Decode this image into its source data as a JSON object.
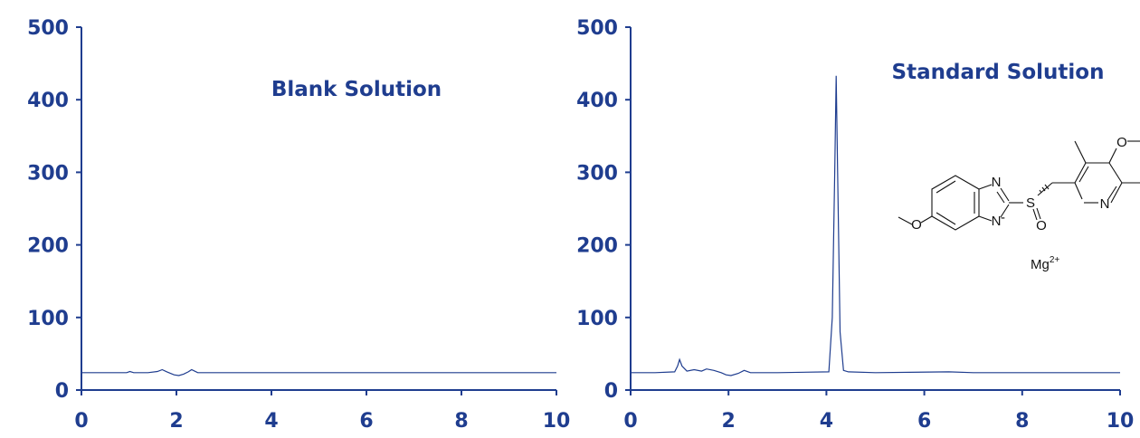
{
  "chart_data": [
    {
      "type": "line",
      "title": "Blank Solution",
      "xlim": [
        0,
        10
      ],
      "ylim": [
        0,
        500
      ],
      "x_ticks": [
        0,
        2,
        4,
        6,
        8,
        10
      ],
      "y_ticks": [
        0,
        100,
        200,
        300,
        400,
        500
      ],
      "series": [
        {
          "x": [
            0,
            0.5,
            0.95,
            1.02,
            1.1,
            1.4,
            1.6,
            1.7,
            1.8,
            1.95,
            2.05,
            2.15,
            2.25,
            2.32,
            2.45,
            3.0,
            5.0,
            7.0,
            10.0
          ],
          "values": [
            24,
            24,
            24,
            25.5,
            24,
            24,
            25.5,
            28,
            25,
            21,
            20,
            22,
            25,
            28,
            24,
            24,
            24,
            24,
            24
          ]
        }
      ]
    },
    {
      "type": "line",
      "title": "Standard Solution",
      "xlim": [
        0,
        10
      ],
      "ylim": [
        0,
        500
      ],
      "x_ticks": [
        0,
        2,
        4,
        6,
        8,
        10
      ],
      "y_ticks": [
        0,
        100,
        200,
        300,
        400,
        500
      ],
      "series": [
        {
          "x": [
            0,
            0.5,
            0.9,
            0.96,
            1.0,
            1.05,
            1.15,
            1.3,
            1.45,
            1.55,
            1.7,
            1.85,
            1.95,
            2.05,
            2.2,
            2.32,
            2.45,
            3.0,
            4.05,
            4.12,
            4.17,
            4.2,
            4.23,
            4.28,
            4.35,
            4.45,
            5.0,
            6.5,
            7.0,
            10.0
          ],
          "values": [
            24,
            24,
            25,
            33,
            42,
            33,
            26,
            28,
            26,
            29,
            27,
            24,
            21,
            20,
            23,
            27,
            24,
            24,
            25,
            100,
            300,
            433,
            300,
            80,
            27,
            25,
            24,
            25,
            24,
            24
          ]
        }
      ]
    }
  ],
  "molecule": {
    "atom_labels": [
      "N",
      "N",
      "S",
      "O",
      "N",
      "O",
      "O"
    ],
    "counter_ion": "Mg",
    "counter_ion_charge": "2+"
  },
  "colors": {
    "axis": "#1f3d8f",
    "trace": "#1f3d8f",
    "structure": "#111111"
  }
}
